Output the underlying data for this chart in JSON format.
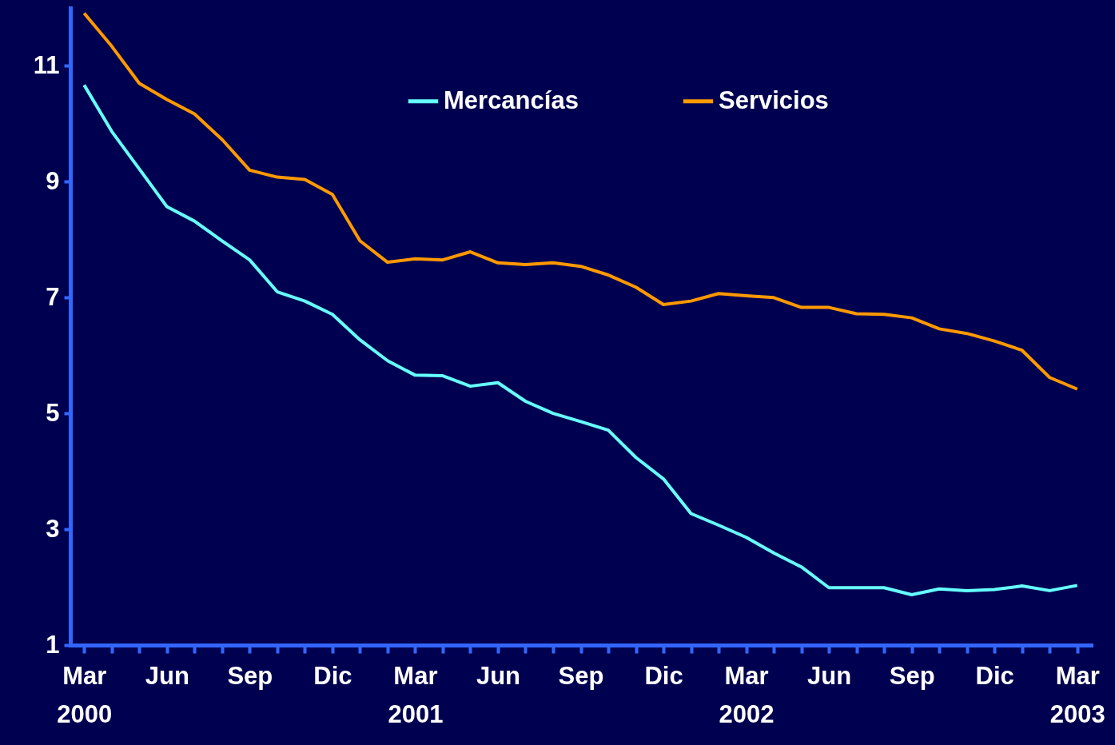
{
  "chart_data": {
    "type": "line",
    "categories": [
      "Mar 2000",
      null,
      null,
      "Jun",
      null,
      null,
      "Sep",
      null,
      null,
      "Dic",
      null,
      null,
      "Mar 2001",
      null,
      null,
      "Jun",
      null,
      null,
      "Sep",
      null,
      null,
      "Dic",
      null,
      null,
      "Mar 2002",
      null,
      null,
      "Jun",
      null,
      null,
      "Sep",
      null,
      null,
      "Dic",
      null,
      null,
      "Mar 2003"
    ],
    "series": [
      {
        "name": "Mercancías",
        "color": "#66ffff",
        "values": [
          10.67,
          9.87,
          9.22,
          8.57,
          8.32,
          7.98,
          7.65,
          7.1,
          6.94,
          6.71,
          6.27,
          5.91,
          5.66,
          5.65,
          5.47,
          5.53,
          5.21,
          5.0,
          4.86,
          4.71,
          4.24,
          3.87,
          3.27,
          3.07,
          2.86,
          2.59,
          2.35,
          1.99,
          1.99,
          1.99,
          1.87,
          1.97,
          1.94,
          1.96,
          2.02,
          1.94,
          2.03
        ]
      },
      {
        "name": "Servicios",
        "color": "#ff9900",
        "values": [
          11.91,
          11.34,
          10.7,
          10.42,
          10.17,
          9.73,
          9.2,
          9.08,
          9.04,
          8.78,
          7.98,
          7.61,
          7.67,
          7.65,
          7.79,
          7.6,
          7.57,
          7.6,
          7.54,
          7.39,
          7.18,
          6.88,
          6.94,
          7.07,
          7.03,
          7.0,
          6.83,
          6.83,
          6.72,
          6.71,
          6.65,
          6.46,
          6.38,
          6.25,
          6.09,
          5.62,
          5.42
        ]
      }
    ],
    "ylim": [
      1,
      12
    ],
    "yticks": [
      1,
      3,
      5,
      7,
      9,
      11
    ],
    "grid": false,
    "legend": "top",
    "marker": "none",
    "line_style": "solid"
  }
}
